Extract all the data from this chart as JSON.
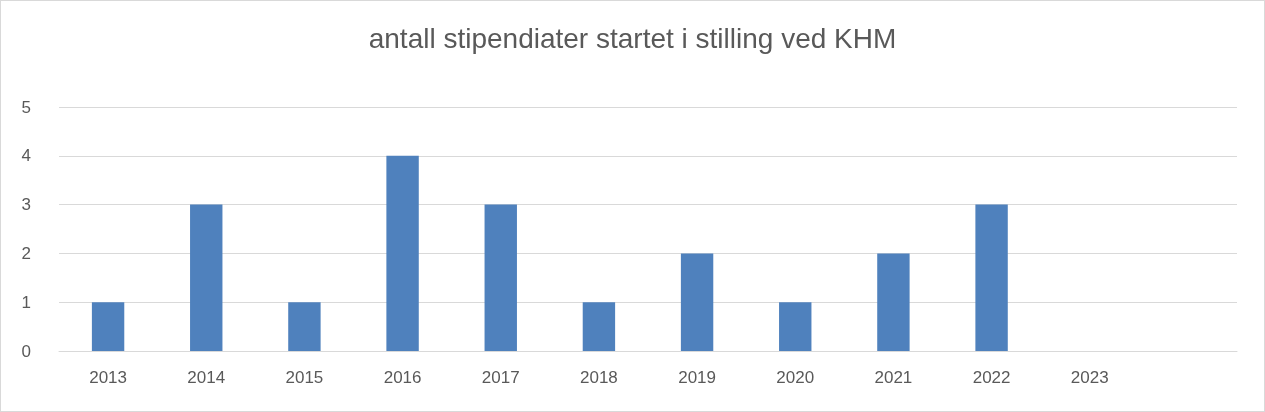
{
  "chart_data": {
    "type": "bar",
    "title": "antall stipendiater startet i stilling ved KHM",
    "categories": [
      "2013",
      "2014",
      "2015",
      "2016",
      "2017",
      "2018",
      "2019",
      "2020",
      "2021",
      "2022",
      "2023",
      null
    ],
    "values": [
      1,
      3,
      1,
      4,
      3,
      1,
      2,
      1,
      2,
      3,
      0,
      null
    ],
    "color": "#4f81bd",
    "ylim": [
      0,
      5
    ],
    "yticks": [
      0,
      1,
      2,
      3,
      4,
      5
    ],
    "grid": "y"
  }
}
